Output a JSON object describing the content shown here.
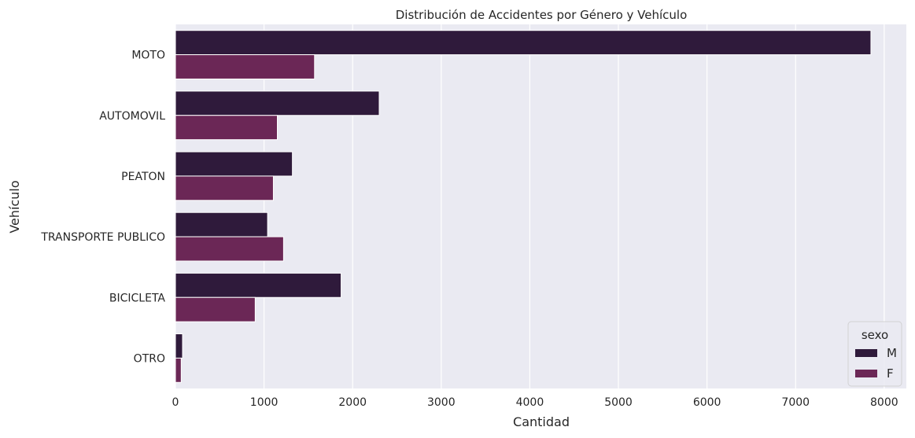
{
  "chart_data": {
    "type": "bar",
    "orientation": "horizontal",
    "title": "Distribución de Accidentes por Género y Vehículo",
    "xlabel": "Cantidad",
    "ylabel": "Vehículo",
    "categories": [
      "MOTO",
      "AUTOMOVIL",
      "PEATON",
      "TRANSPORTE PUBLICO",
      "BICICLETA",
      "OTRO"
    ],
    "series": [
      {
        "name": "M",
        "color": "#2f1a3b",
        "values": [
          7850,
          2300,
          1320,
          1040,
          1870,
          80
        ]
      },
      {
        "name": "F",
        "color": "#6b2756",
        "values": [
          1570,
          1150,
          1105,
          1220,
          900,
          65
        ]
      }
    ],
    "xlim": [
      0,
      8250
    ],
    "xticks": [
      0,
      1000,
      2000,
      3000,
      4000,
      5000,
      6000,
      7000,
      8000
    ],
    "grid": true,
    "legend": {
      "title": "sexo",
      "position": "lower-right"
    },
    "colors": {
      "plot_background": "#eaeaf2",
      "grid": "#ffffff",
      "text": "#262626"
    }
  }
}
